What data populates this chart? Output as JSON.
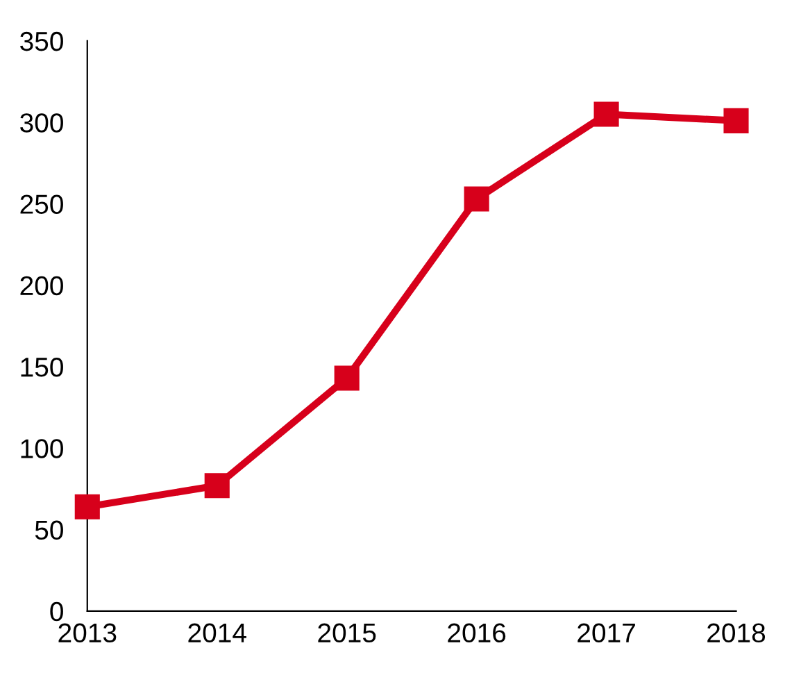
{
  "chart_data": {
    "type": "line",
    "categories": [
      "2013",
      "2014",
      "2015",
      "2016",
      "2017",
      "2018"
    ],
    "series": [
      {
        "color": "#d7001b",
        "values": [
          64,
          77,
          143,
          253,
          305,
          301
        ]
      }
    ],
    "ylim": [
      0,
      350
    ],
    "yticks": [
      0,
      50,
      100,
      150,
      200,
      250,
      300,
      350
    ],
    "marker": "square",
    "line_style": "solid"
  }
}
